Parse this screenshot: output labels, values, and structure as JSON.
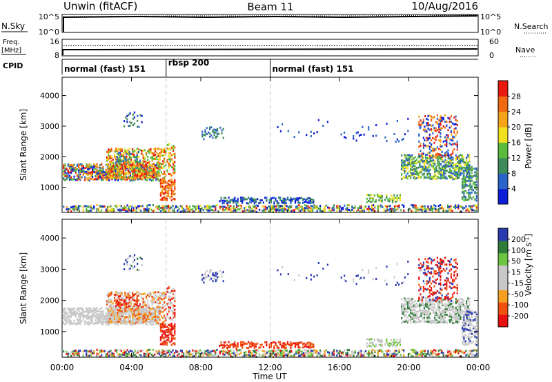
{
  "header": {
    "radar": "Unwin (fitACF)",
    "beam": "Beam 11",
    "date": "10/Aug/2016"
  },
  "top_panels": {
    "nsky_label": "N.Sky",
    "nsky_ticks": [
      "10^5",
      "10^0"
    ],
    "nsearch_label": "N.Search",
    "nsearch_ticks": [
      "10^5",
      "10^0"
    ],
    "freq_label": "Freq.",
    "freq_unit": "[MHz]",
    "freq_ticks": [
      "16",
      "8"
    ],
    "nave_label": "Nave",
    "nave_ticks": [
      "60",
      "0"
    ],
    "cpid_label": "CPID"
  },
  "cpid_segments": [
    {
      "label": "normal (fast) 151",
      "start_h": 0
    },
    {
      "label": "rbsp 200",
      "start_h": 6
    },
    {
      "label": "normal (fast) 151",
      "start_h": 12
    }
  ],
  "colors": {
    "power": [
      "#0d1ed8",
      "#2a64c8",
      "#3f8a5a",
      "#5abb3c",
      "#f0e020",
      "#f5a41a",
      "#f06a12",
      "#e81a10"
    ],
    "velocity": [
      "#e81010",
      "#f05010",
      "#f5a020",
      "#c8c8c8",
      "#c8c8c8",
      "#6cc440",
      "#2f7d38",
      "#2a3ab0"
    ],
    "grey": "#c8c8c8"
  },
  "power_colorbar": {
    "label": "Power [dB]",
    "ticks": [
      "28",
      "24",
      "20",
      "16",
      "12",
      "8",
      "4"
    ]
  },
  "velocity_colorbar": {
    "label": "Velocity [m s",
    "label_sup": "-1",
    "label_end": "]",
    "ticks": [
      "200",
      "100",
      "50",
      "15",
      "-15",
      "-50",
      "-100",
      "-200"
    ]
  },
  "chart_data": {
    "type": "heatmap",
    "xlabel": "Time UT",
    "ylabel": "Slant Range [km]",
    "x_range_hours": [
      0,
      24
    ],
    "x_ticks": [
      "00:00",
      "04:00",
      "08:00",
      "12:00",
      "16:00",
      "20:00",
      "00:00"
    ],
    "y_range_km": [
      180,
      4600
    ],
    "y_ticks": [
      1000,
      2000,
      3000,
      4000
    ],
    "mode_change_hours": [
      6,
      12
    ],
    "panels": [
      "power",
      "velocity"
    ]
  }
}
